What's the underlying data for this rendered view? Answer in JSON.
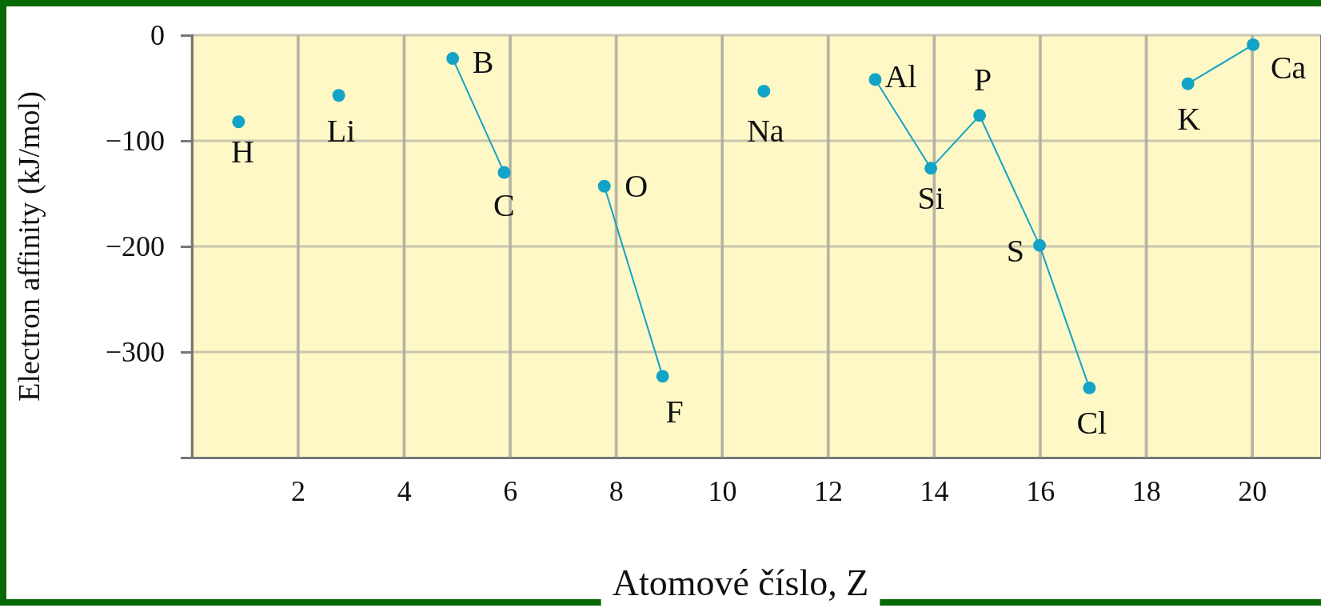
{
  "chart_data": {
    "type": "line",
    "xlabel": "Atomové číslo, Z",
    "ylabel": "Electron affinity (kJ/mol)",
    "xlim": [
      0,
      21.3
    ],
    "ylim": [
      -400,
      0
    ],
    "xticks": [
      {
        "value": 0,
        "label": null
      },
      2,
      4,
      6,
      8,
      10,
      12,
      14,
      16,
      18,
      20
    ],
    "yticks": [
      0,
      {
        "value": -100,
        "label": "−100"
      },
      {
        "value": -200,
        "label": "−200"
      },
      {
        "value": -300,
        "label": "−300"
      }
    ],
    "grid": true,
    "marker": "circle",
    "line_style": "solid",
    "series": [
      {
        "type": "scatter",
        "color": "#13a3c6",
        "x": [
          0.88,
          2.77,
          10.79
        ],
        "values": [
          -82,
          -57,
          -53
        ]
      },
      {
        "color": "#13a3c6",
        "x": [
          4.92,
          5.89
        ],
        "values": [
          -22,
          -130
        ]
      },
      {
        "color": "#13a3c6",
        "x": [
          7.78,
          8.88
        ],
        "values": [
          -143,
          -323
        ]
      },
      {
        "color": "#13a3c6",
        "x": [
          12.89,
          13.94,
          14.86,
          15.99,
          16.93
        ],
        "values": [
          -42,
          -126,
          -76,
          -199,
          -334
        ]
      },
      {
        "color": "#13a3c6",
        "x": [
          18.79,
          20.02
        ],
        "values": [
          -46,
          -9
        ]
      }
    ],
    "annotations": [
      {
        "text": "H",
        "x": 0.88,
        "y": -82
      },
      {
        "text": "Li",
        "x": 2.77,
        "y": -57
      },
      {
        "text": "B",
        "x": 4.92,
        "y": -22
      },
      {
        "text": "C",
        "x": 5.89,
        "y": -130
      },
      {
        "text": "O",
        "x": 7.78,
        "y": -143
      },
      {
        "text": "F",
        "x": 8.88,
        "y": -323
      },
      {
        "text": "Na",
        "x": 10.79,
        "y": -53
      },
      {
        "text": "Al",
        "x": 12.89,
        "y": -42
      },
      {
        "text": "Si",
        "x": 13.94,
        "y": -126
      },
      {
        "text": "P",
        "x": 14.86,
        "y": -76
      },
      {
        "text": "S",
        "x": 15.99,
        "y": -199
      },
      {
        "text": "Cl",
        "x": 16.93,
        "y": -334
      },
      {
        "text": "K",
        "x": 18.79,
        "y": -46
      },
      {
        "text": "Ca",
        "x": 20.02,
        "y": -9
      }
    ]
  }
}
